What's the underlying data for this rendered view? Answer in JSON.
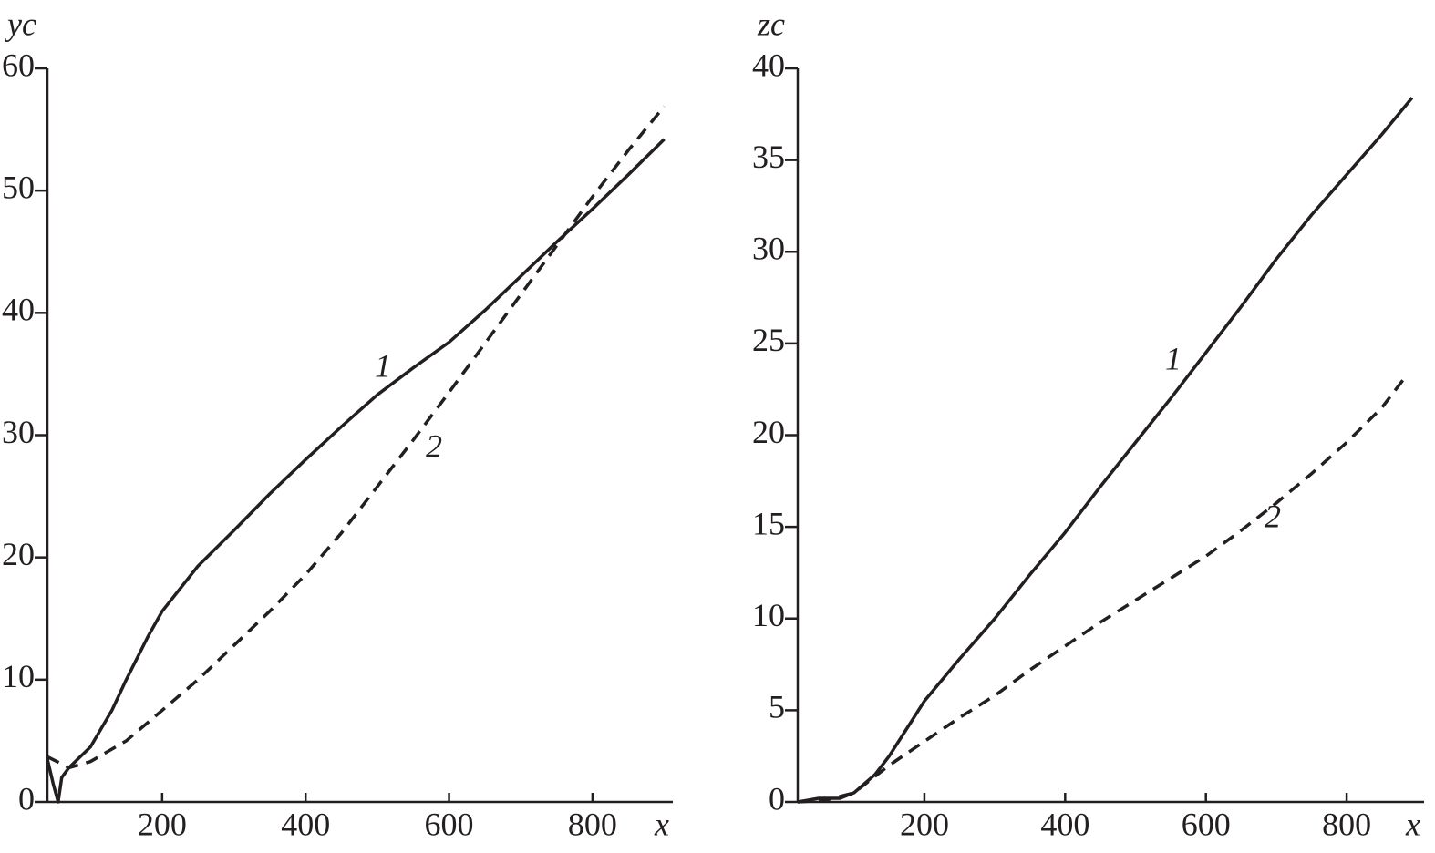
{
  "chart_data": [
    {
      "type": "line",
      "xlabel": "x",
      "ylabel": "yc",
      "xlim": [
        40,
        912
      ],
      "ylim": [
        0,
        60
      ],
      "xticks": [
        200,
        400,
        600,
        800
      ],
      "yticks": [
        0,
        10,
        20,
        30,
        40,
        50,
        60
      ],
      "series": [
        {
          "name": "1",
          "color": "#231f20",
          "linestyle": "solid",
          "x": [
            40,
            48,
            55,
            60,
            70,
            100,
            130,
            150,
            180,
            200,
            250,
            300,
            350,
            400,
            450,
            500,
            550,
            600,
            650,
            700,
            750,
            800,
            850,
            900
          ],
          "values": [
            3.5,
            1.5,
            0,
            2,
            2.8,
            4.5,
            7.5,
            10,
            13.5,
            15.6,
            19.3,
            22.2,
            25.2,
            28,
            30.7,
            33.3,
            35.5,
            37.6,
            40.2,
            43,
            45.8,
            48.5,
            51.3,
            54.2
          ]
        },
        {
          "name": "2",
          "color": "#231f20",
          "linestyle": "dashed",
          "x": [
            40,
            70,
            100,
            150,
            200,
            250,
            300,
            350,
            400,
            450,
            500,
            550,
            600,
            650,
            700,
            750,
            800,
            850,
            900
          ],
          "values": [
            3.7,
            2.8,
            3.3,
            5,
            7.5,
            10,
            12.8,
            15.6,
            18.6,
            22,
            25.8,
            29.6,
            33.5,
            37.5,
            41.5,
            45.5,
            49.5,
            53.3,
            56.9
          ]
        }
      ]
    },
    {
      "type": "line",
      "xlabel": "x",
      "ylabel": "zc",
      "xlim": [
        20,
        910
      ],
      "ylim": [
        0,
        40
      ],
      "xticks": [
        200,
        400,
        600,
        800
      ],
      "yticks": [
        0,
        5,
        10,
        15,
        20,
        25,
        30,
        35,
        40
      ],
      "series": [
        {
          "name": "1",
          "color": "#231f20",
          "linestyle": "solid",
          "x": [
            20,
            50,
            80,
            100,
            130,
            150,
            180,
            200,
            250,
            300,
            350,
            400,
            450,
            500,
            550,
            600,
            650,
            700,
            750,
            800,
            850,
            893
          ],
          "values": [
            0,
            0.2,
            0.2,
            0.5,
            1.5,
            2.5,
            4.3,
            5.5,
            7.8,
            10,
            12.4,
            14.7,
            17.2,
            19.6,
            22,
            24.5,
            27,
            29.6,
            32,
            34.2,
            36.4,
            38.4
          ]
        },
        {
          "name": "2",
          "color": "#231f20",
          "linestyle": "dashed",
          "x": [
            20,
            60,
            100,
            150,
            200,
            250,
            300,
            350,
            400,
            450,
            500,
            550,
            600,
            650,
            700,
            750,
            800,
            850,
            880
          ],
          "values": [
            0,
            0.1,
            0.5,
            2,
            3.3,
            4.6,
            5.8,
            7.2,
            8.5,
            9.8,
            11,
            12.2,
            13.4,
            14.8,
            16.3,
            17.9,
            19.6,
            21.5,
            23
          ]
        }
      ]
    }
  ]
}
